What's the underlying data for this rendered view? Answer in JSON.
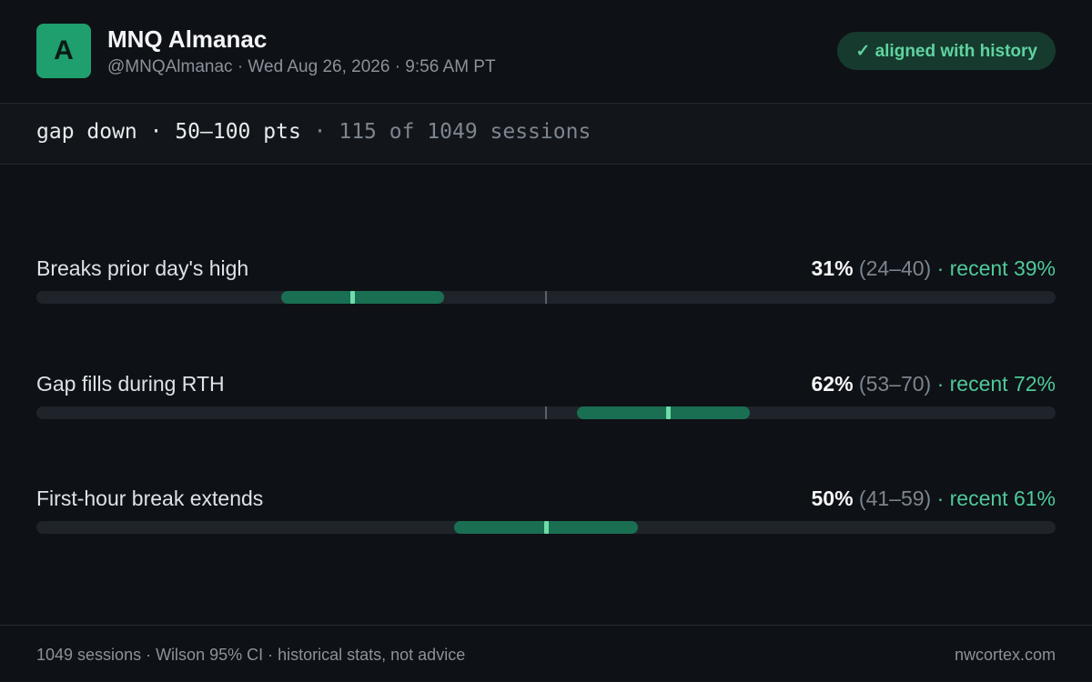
{
  "header": {
    "avatar": "A",
    "title": "MNQ Almanac",
    "handle": "@MNQAlmanac · Wed Aug 26, 2026 · 9:56 AM PT",
    "badge": "✓ aligned with history"
  },
  "filter": {
    "setup": "gap down · 50–100 pts",
    "sample": "· 115 of 1049 sessions"
  },
  "scale": {
    "range": [
      0,
      100
    ],
    "reference": 50
  },
  "rows": [
    {
      "label": "Breaks prior day's high",
      "value": 31,
      "value_label": "31%",
      "ci": [
        24,
        40
      ],
      "ci_label": "(24–40)",
      "recent": "· recent 39%"
    },
    {
      "label": "Gap fills during RTH",
      "value": 62,
      "value_label": "62%",
      "ci": [
        53,
        70
      ],
      "ci_label": "(53–70)",
      "recent": "· recent 72%"
    },
    {
      "label": "First-hour break extends",
      "value": 50,
      "value_label": "50%",
      "ci": [
        41,
        59
      ],
      "ci_label": "(41–59)",
      "recent": "· recent 61%"
    }
  ],
  "footer": {
    "left": "1049 sessions · Wilson 95% CI · historical stats, not advice",
    "right": "nwcortex.com"
  }
}
